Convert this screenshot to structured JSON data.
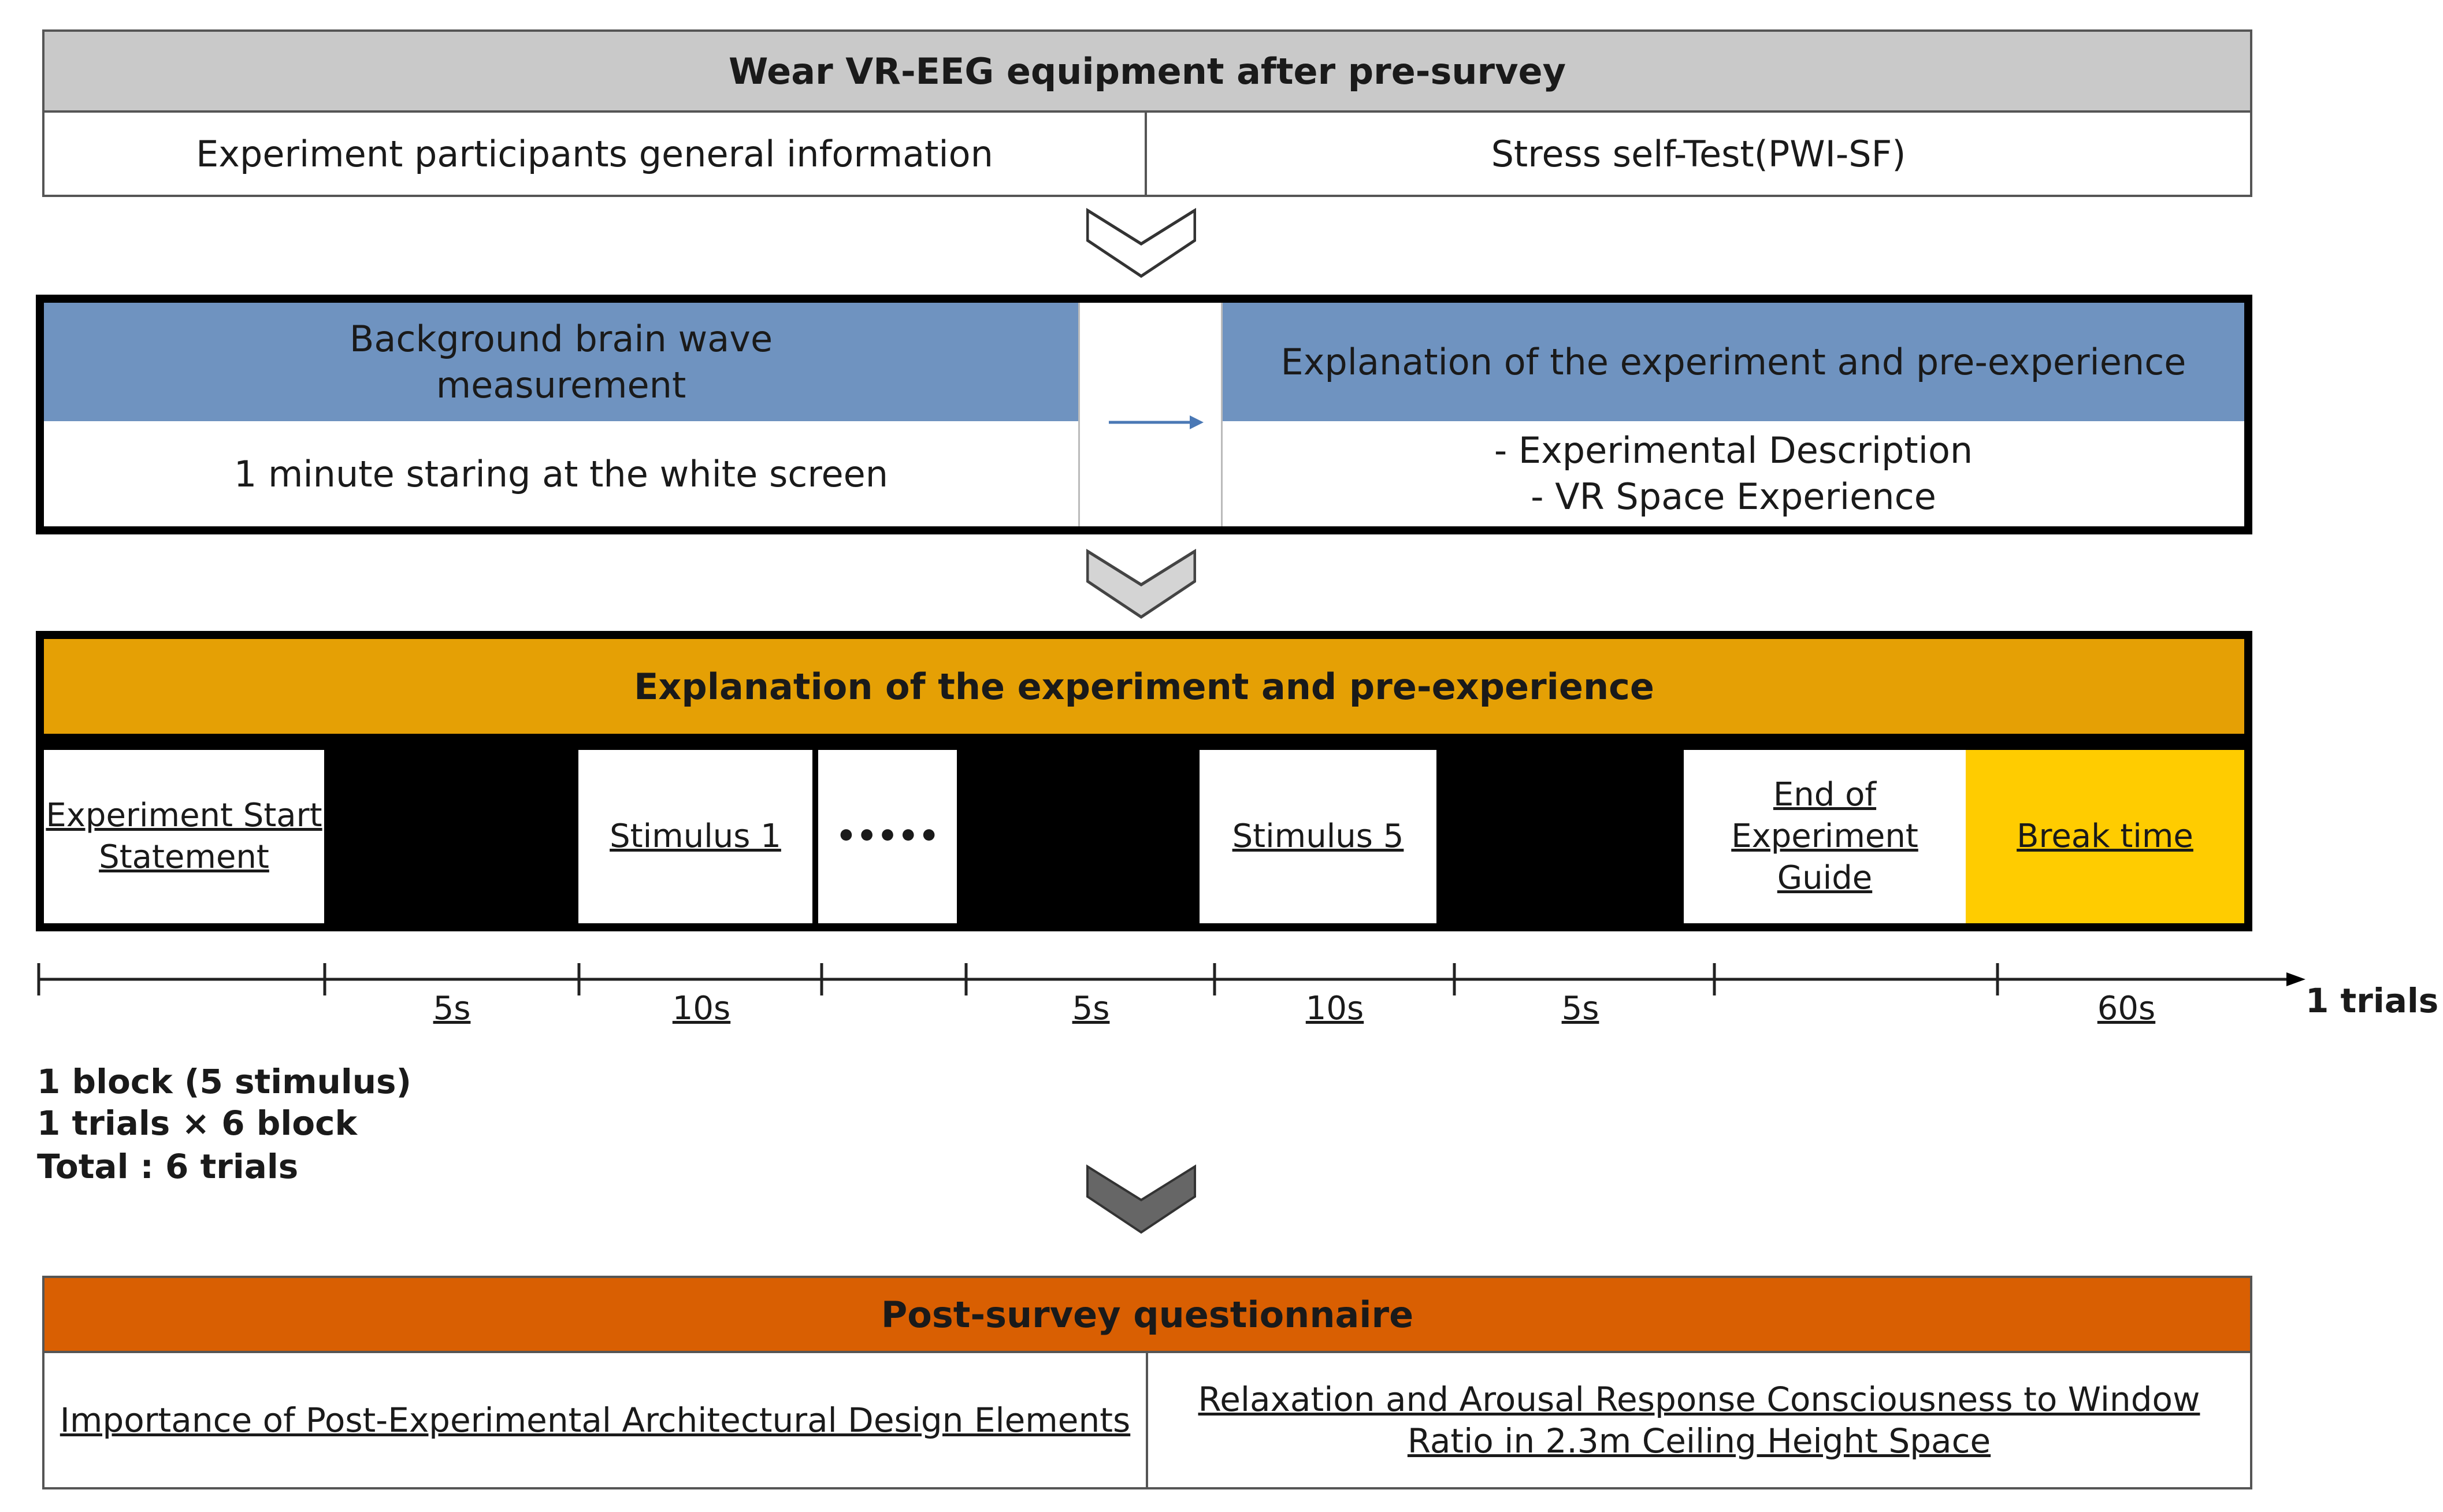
{
  "pre_survey": {
    "title": "Wear VR-EEG equipment after pre-survey",
    "left": "Experiment participants general information",
    "right": "Stress self-Test(PWI-SF)"
  },
  "baseline": {
    "left_title": "Background brain wave measurement",
    "left_body": "1 minute staring at the white screen",
    "right_title": "Explanation of the experiment and pre-experience",
    "right_items": [
      "-  Experimental Description",
      "-  VR Space Experience"
    ]
  },
  "trial": {
    "title": "Explanation of the experiment and pre-experience",
    "cells": [
      "Experiment Start Statement",
      "",
      "Stimulus 1",
      "•••••",
      "",
      "Stimulus 5",
      "",
      "End of Experiment Guide",
      "Break time"
    ],
    "durations": [
      "5s",
      "10s",
      "5s",
      "10s",
      "5s",
      "60s"
    ],
    "axis_label": "1 trials"
  },
  "block_notes": [
    "1 block (5 stimulus)",
    "1 trials × 6 block",
    "Total : 6 trials"
  ],
  "post_survey": {
    "title": "Post-survey questionnaire",
    "left": "Importance of Post-Experimental Architectural Design Elements",
    "right": "Relaxation and Arousal Response Consciousness to Window Ratio in 2.3m Ceiling Height Space"
  },
  "colors": {
    "header_gray": "#c9c9c9",
    "header_blue": "#6f93c0",
    "header_amber": "#e5a005",
    "break_yellow": "#ffcc00",
    "header_orange": "#d95f02"
  }
}
